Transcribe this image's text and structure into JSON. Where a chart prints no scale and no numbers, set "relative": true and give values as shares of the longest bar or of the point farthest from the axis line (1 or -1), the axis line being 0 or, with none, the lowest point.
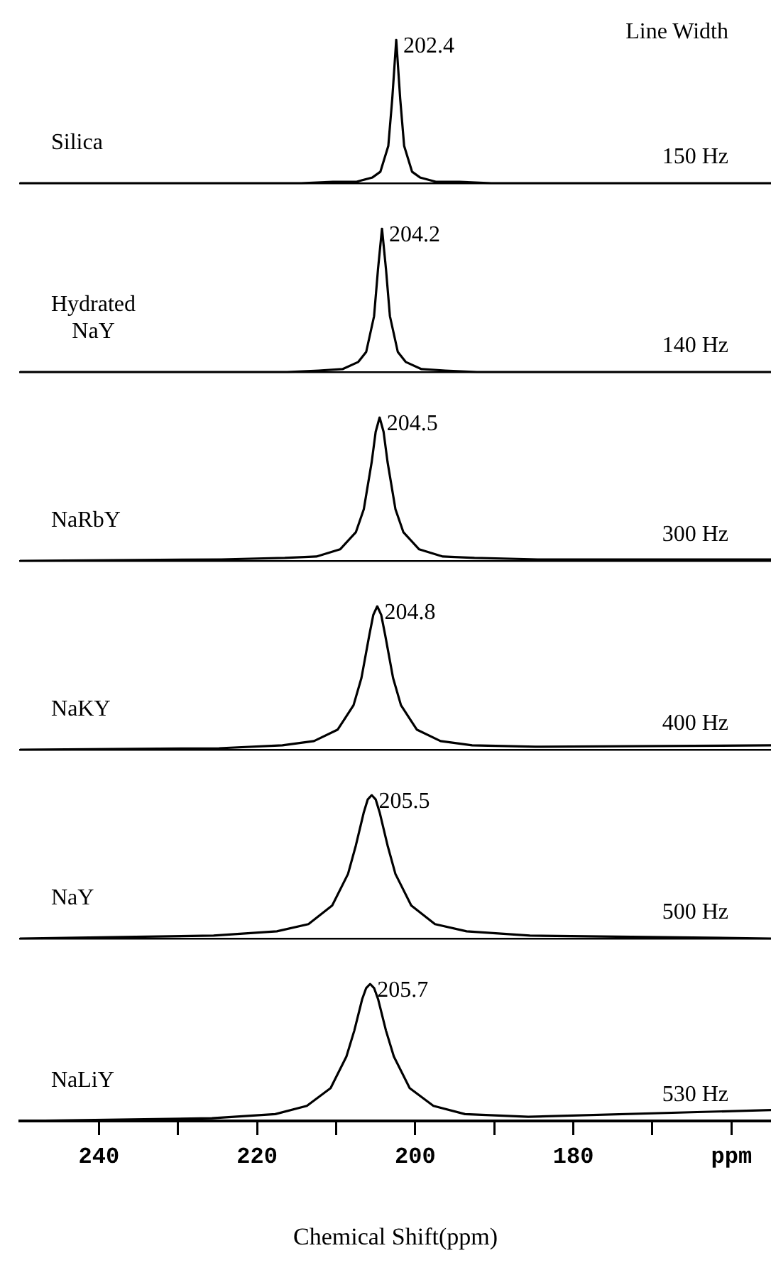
{
  "chart_data": [
    {
      "type": "line",
      "relative": true,
      "xlim": [
        250,
        155
      ],
      "tick_labels": false,
      "grid": false,
      "marker": "none",
      "line_style": "solid",
      "annotations": [
        "Line Width",
        "150 Hz",
        {
          "text": "202.4",
          "x": 202.4,
          "y": 1
        }
      ],
      "series": [
        {
          "name": "Silica",
          "color": "#000000",
          "x": [
            250,
            222.4,
            214.4,
            210.4,
            207.4,
            205.4,
            204.4,
            203.4,
            202.9,
            202.4,
            201.9,
            201.4,
            200.4,
            199.4,
            197.4,
            194.4,
            190.4,
            182.4,
            155
          ],
          "values": [
            0,
            0,
            0,
            0.01,
            0.01,
            0.04,
            0.08,
            0.26,
            0.59,
            1,
            0.59,
            0.26,
            0.08,
            0.04,
            0.01,
            0.01,
            0,
            0,
            0
          ]
        }
      ]
    },
    {
      "type": "line",
      "relative": true,
      "xlim": [
        250,
        155
      ],
      "tick_labels": false,
      "grid": false,
      "marker": "none",
      "line_style": "solid",
      "annotations": [
        "140 Hz",
        {
          "text": "204.2",
          "x": 204.2,
          "y": 1
        }
      ],
      "series": [
        {
          "name": "Hydrated\nNaY",
          "color": "#000000",
          "x": [
            250,
            224.2,
            216.2,
            212.2,
            209.2,
            207.2,
            206.2,
            205.2,
            204.7,
            204.2,
            203.7,
            203.2,
            202.2,
            201.2,
            199.2,
            196.2,
            192.2,
            184.2,
            155
          ],
          "values": [
            0,
            0,
            0,
            0.01,
            0.02,
            0.07,
            0.14,
            0.39,
            0.72,
            1,
            0.72,
            0.39,
            0.14,
            0.07,
            0.02,
            0.01,
            0,
            0,
            0
          ]
        }
      ]
    },
    {
      "type": "line",
      "relative": true,
      "xlim": [
        250,
        155
      ],
      "tick_labels": false,
      "grid": false,
      "marker": "none",
      "line_style": "solid",
      "annotations": [
        "300 Hz",
        {
          "text": "204.5",
          "x": 204.5,
          "y": 1
        }
      ],
      "series": [
        {
          "name": "NaRbY",
          "color": "#000000",
          "x": [
            250,
            224.5,
            216.5,
            212.5,
            209.5,
            207.5,
            206.5,
            205.5,
            205,
            204.5,
            204,
            203.5,
            202.5,
            201.5,
            199.5,
            196.5,
            192.5,
            184.5,
            155
          ],
          "values": [
            0,
            0.01,
            0.02,
            0.03,
            0.08,
            0.2,
            0.36,
            0.69,
            0.9,
            1,
            0.9,
            0.69,
            0.36,
            0.2,
            0.08,
            0.03,
            0.02,
            0.01,
            0.01
          ]
        }
      ]
    },
    {
      "type": "line",
      "relative": true,
      "xlim": [
        250,
        155
      ],
      "tick_labels": false,
      "grid": false,
      "marker": "none",
      "line_style": "solid",
      "annotations": [
        "400 Hz",
        {
          "text": "204.8",
          "x": 204.8,
          "y": 1
        }
      ],
      "series": [
        {
          "name": "NaKY",
          "color": "#000000",
          "x": [
            250,
            224.8,
            216.8,
            212.8,
            209.8,
            207.8,
            206.8,
            205.8,
            205.3,
            204.8,
            204.3,
            203.8,
            202.8,
            201.8,
            199.8,
            196.8,
            192.8,
            184.8,
            155
          ],
          "values": [
            0,
            0.01,
            0.03,
            0.06,
            0.14,
            0.31,
            0.5,
            0.8,
            0.94,
            1,
            0.94,
            0.8,
            0.5,
            0.31,
            0.14,
            0.06,
            0.03,
            0.02,
            0.03
          ]
        }
      ]
    },
    {
      "type": "line",
      "relative": true,
      "xlim": [
        250,
        155
      ],
      "tick_labels": false,
      "grid": false,
      "marker": "none",
      "line_style": "solid",
      "annotations": [
        "500 Hz",
        {
          "text": "205.5",
          "x": 205.5,
          "y": 1
        }
      ],
      "series": [
        {
          "name": "NaY",
          "color": "#000000",
          "x": [
            250,
            225.5,
            217.5,
            213.5,
            210.5,
            208.5,
            207.5,
            206.5,
            206,
            205.5,
            205,
            204.5,
            203.5,
            202.5,
            200.5,
            197.5,
            193.5,
            185.5,
            155
          ],
          "values": [
            0,
            0.02,
            0.05,
            0.1,
            0.23,
            0.45,
            0.65,
            0.88,
            0.97,
            1,
            0.97,
            0.88,
            0.65,
            0.45,
            0.23,
            0.1,
            0.05,
            0.02,
            0
          ]
        }
      ]
    },
    {
      "type": "line",
      "relative": true,
      "xlim": [
        250,
        155
      ],
      "xticks": [
        240,
        {
          "value": 230,
          "label": null
        },
        220,
        {
          "value": 210,
          "label": null
        },
        200,
        {
          "value": 190,
          "label": null
        },
        180,
        {
          "value": 170,
          "label": null
        },
        {
          "value": 160,
          "label": "ppm"
        }
      ],
      "tick_labels": "x",
      "xlabel": "Chemical Shift(ppm)",
      "grid": false,
      "marker": "none",
      "line_style": "solid",
      "annotations": [
        "530 Hz",
        {
          "text": "205.7",
          "x": 205.7,
          "y": 1
        }
      ],
      "series": [
        {
          "name": "NaLiY",
          "color": "#000000",
          "x": [
            250,
            225.7,
            217.7,
            213.7,
            210.7,
            208.7,
            207.7,
            206.7,
            206.2,
            205.7,
            205.2,
            204.7,
            203.7,
            202.7,
            200.7,
            197.7,
            193.7,
            185.7,
            155
          ],
          "values": [
            0,
            0.02,
            0.05,
            0.11,
            0.24,
            0.47,
            0.66,
            0.89,
            0.97,
            1,
            0.97,
            0.89,
            0.66,
            0.47,
            0.24,
            0.11,
            0.05,
            0.03,
            0.08
          ]
        }
      ]
    }
  ]
}
